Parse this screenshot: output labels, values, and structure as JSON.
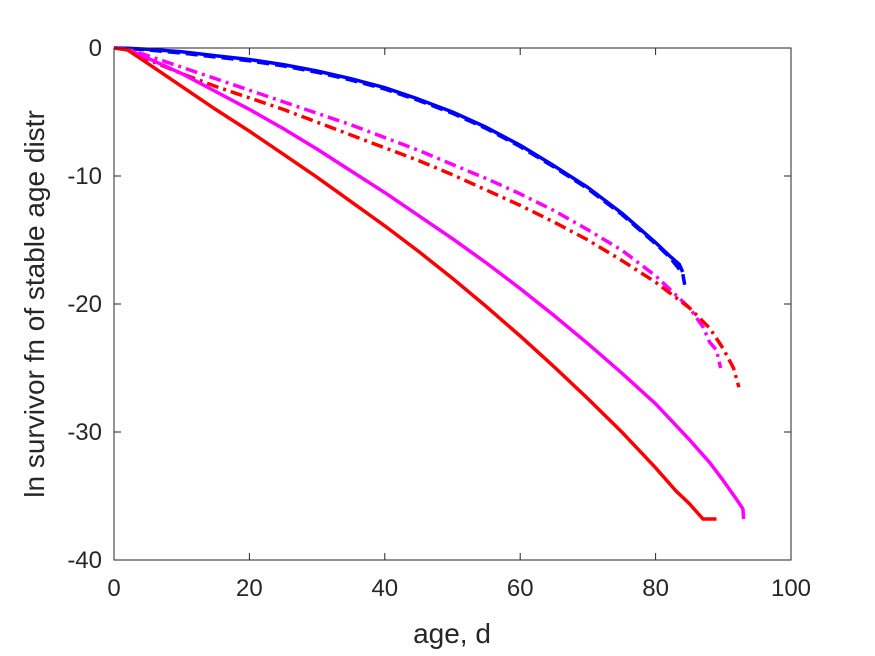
{
  "chart_data": {
    "type": "line",
    "title": "",
    "xlabel": "age, d",
    "ylabel": "ln survivor fn of stable age distr",
    "xlim": [
      0,
      100
    ],
    "ylim": [
      -40,
      0
    ],
    "xticks": [
      0,
      20,
      40,
      60,
      80,
      100
    ],
    "yticks": [
      0,
      -10,
      -20,
      -30,
      -40
    ],
    "grid": false,
    "legend": "none",
    "series": [
      {
        "color": "#0000ff",
        "dash": "solid",
        "x": [
          0,
          2,
          5,
          10,
          15,
          20,
          25,
          30,
          35,
          40,
          45,
          50,
          55,
          60,
          65,
          70,
          75,
          80,
          82,
          83.5,
          84
        ],
        "y": [
          0,
          -0.02,
          -0.1,
          -0.3,
          -0.6,
          -0.9,
          -1.3,
          -1.8,
          -2.4,
          -3.1,
          -4.0,
          -5.0,
          -6.2,
          -7.6,
          -9.2,
          -10.9,
          -12.9,
          -15.2,
          -16.2,
          -16.9,
          -17.5
        ]
      },
      {
        "color": "#0000ff",
        "dash": "dashed",
        "x": [
          0,
          2,
          5,
          10,
          15,
          20,
          25,
          30,
          35,
          40,
          45,
          50,
          55,
          60,
          65,
          70,
          75,
          80,
          82,
          84,
          84.3
        ],
        "y": [
          0,
          -0.04,
          -0.15,
          -0.4,
          -0.7,
          -1.0,
          -1.4,
          -1.9,
          -2.5,
          -3.2,
          -4.1,
          -5.1,
          -6.3,
          -7.7,
          -9.3,
          -11.0,
          -13.0,
          -15.3,
          -16.3,
          -17.6,
          -18.5
        ]
      },
      {
        "color": "#ff00ff",
        "dash": "dashdot",
        "x": [
          0,
          2,
          5,
          10,
          15,
          20,
          25,
          30,
          35,
          40,
          45,
          50,
          55,
          60,
          65,
          70,
          75,
          80,
          85,
          87,
          88,
          89,
          89.6
        ],
        "y": [
          0,
          -0.1,
          -0.6,
          -1.5,
          -2.4,
          -3.3,
          -4.2,
          -5.1,
          -6.0,
          -7.0,
          -8.0,
          -9.1,
          -10.2,
          -11.4,
          -12.7,
          -14.2,
          -15.8,
          -17.8,
          -20.3,
          -21.8,
          -23.0,
          -23.6,
          -25.0
        ]
      },
      {
        "color": "#ff0000",
        "dash": "dashdot",
        "x": [
          0,
          2,
          5,
          10,
          15,
          20,
          25,
          30,
          35,
          40,
          45,
          50,
          55,
          60,
          65,
          70,
          75,
          80,
          85,
          88,
          90,
          91.5,
          92.3
        ],
        "y": [
          0,
          -0.15,
          -0.9,
          -2.0,
          -3.0,
          -3.9,
          -4.8,
          -5.8,
          -6.8,
          -7.8,
          -8.8,
          -9.9,
          -11.1,
          -12.3,
          -13.6,
          -15.0,
          -16.6,
          -18.3,
          -20.3,
          -21.9,
          -23.5,
          -25.0,
          -26.5
        ]
      },
      {
        "color": "#ff00ff",
        "dash": "solid",
        "x": [
          0,
          2,
          5,
          10,
          15,
          20,
          25,
          30,
          35,
          40,
          45,
          50,
          55,
          60,
          65,
          70,
          75,
          80,
          85,
          88,
          90,
          92,
          92.9,
          93
        ],
        "y": [
          0,
          -0.1,
          -0.8,
          -2.0,
          -3.4,
          -4.8,
          -6.3,
          -7.9,
          -9.6,
          -11.3,
          -13.1,
          -14.9,
          -16.8,
          -18.8,
          -20.9,
          -23.1,
          -25.4,
          -27.8,
          -30.6,
          -32.4,
          -33.8,
          -35.3,
          -36.0,
          -36.8
        ]
      },
      {
        "color": "#ff0000",
        "dash": "solid",
        "x": [
          0,
          2,
          5,
          10,
          15,
          20,
          25,
          30,
          35,
          40,
          45,
          50,
          55,
          60,
          65,
          70,
          75,
          80,
          83,
          85,
          86,
          87,
          89
        ],
        "y": [
          0,
          -0.15,
          -1.2,
          -3.0,
          -4.8,
          -6.5,
          -8.3,
          -10.1,
          -12.0,
          -13.9,
          -15.9,
          -18.0,
          -20.2,
          -22.5,
          -24.9,
          -27.4,
          -30.0,
          -32.8,
          -34.6,
          -35.6,
          -36.2,
          -36.8,
          -36.8
        ]
      }
    ]
  }
}
